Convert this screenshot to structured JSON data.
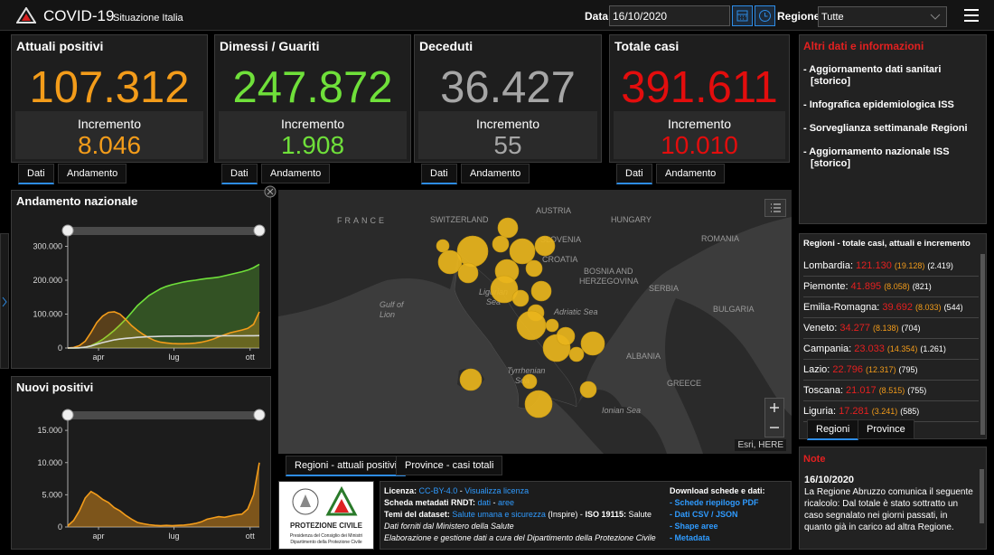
{
  "header": {
    "title": "COVID-19",
    "subtitle": "Situazione Italia",
    "date_label": "Data",
    "date": "16/10/2020",
    "region_label": "Regione",
    "region": "Tutte"
  },
  "cards": [
    {
      "title": "Attuali positivi",
      "value": "107.312",
      "increment_label": "Incremento",
      "increment": "8.046",
      "color": "#f39c1a",
      "tabs": [
        "Dati",
        "Andamento"
      ]
    },
    {
      "title": "Dimessi / Guariti",
      "value": "247.872",
      "increment_label": "Incremento",
      "increment": "1.908",
      "color": "#6fe03a",
      "tabs": [
        "Dati",
        "Andamento"
      ]
    },
    {
      "title": "Deceduti",
      "value": "36.427",
      "increment_label": "Incremento",
      "increment": "55",
      "color": "#a6a6a6",
      "tabs": [
        "Dati",
        "Andamento"
      ]
    },
    {
      "title": "Totale casi",
      "value": "391.611",
      "increment_label": "Incremento",
      "increment": "10.010",
      "color": "#e30d0d",
      "tabs": [
        "Dati",
        "Andamento"
      ]
    }
  ],
  "links": {
    "title": "Altri dati e informazioni",
    "items": [
      [
        "- Aggiornamento dati sanitari",
        "[storico]"
      ],
      [
        "- Infografica epidemiologica ISS"
      ],
      [
        "- Sorveglianza settimanale Regioni"
      ],
      [
        "- Aggiornamento nazionale ISS",
        "[storico]"
      ]
    ]
  },
  "andamento": {
    "type": "line",
    "title": "Andamento nazionale",
    "ylim": [
      0,
      320000
    ],
    "yticks": [
      0,
      {
        "value": 100000,
        "label": "100.000"
      },
      {
        "value": 200000,
        "label": "200.000"
      },
      {
        "value": 300000,
        "label": "300.000"
      }
    ],
    "xticks": [
      {
        "value": 5.3,
        "label": "apr"
      },
      {
        "value": 18.3,
        "label": "lug"
      },
      {
        "value": 31.4,
        "label": "ott"
      }
    ],
    "series": [
      {
        "color": "#6fe03a",
        "values": [
          0,
          100,
          600,
          2500,
          7000,
          15000,
          25000,
          38000,
          52000,
          68000,
          85000,
          105000,
          125000,
          140000,
          155000,
          165000,
          175000,
          182000,
          187000,
          191000,
          195000,
          198000,
          200000,
          203000,
          205000,
          207000,
          209000,
          213000,
          217000,
          221000,
          225000,
          230000,
          237000,
          247000
        ]
      },
      {
        "color": "#f39c1a",
        "values": [
          200,
          1500,
          7000,
          20000,
          46000,
          75000,
          94000,
          105000,
          107000,
          100000,
          84000,
          66000,
          52000,
          40000,
          30000,
          22000,
          17000,
          15000,
          13000,
          12500,
          12500,
          13000,
          14500,
          17000,
          21000,
          26000,
          33000,
          39000,
          45000,
          49000,
          53000,
          58000,
          70000,
          107000
        ]
      },
      {
        "color": "#d9d9d9",
        "values": [
          0,
          100,
          500,
          2500,
          6000,
          11000,
          16000,
          20000,
          24000,
          26500,
          28500,
          30000,
          31500,
          32500,
          33500,
          34000,
          34500,
          34800,
          35000,
          35100,
          35200,
          35300,
          35400,
          35500,
          35600,
          35700,
          35800,
          35900,
          36000,
          36000,
          36100,
          36200,
          36300,
          36400
        ]
      }
    ]
  },
  "nuovi": {
    "type": "area",
    "title": "Nuovi positivi",
    "ylim": [
      0,
      16000
    ],
    "yticks": [
      0,
      {
        "value": 5000,
        "label": "5.000"
      },
      {
        "value": 10000,
        "label": "10.000"
      },
      {
        "value": 15000,
        "label": "15.000"
      }
    ],
    "xticks": [
      {
        "value": 5.3,
        "label": "apr"
      },
      {
        "value": 18.3,
        "label": "lug"
      },
      {
        "value": 31.4,
        "label": "ott"
      }
    ],
    "series": [
      {
        "color": "#f39c1a",
        "values": [
          200,
          1000,
          2500,
          4500,
          5500,
          5000,
          4300,
          3800,
          3000,
          2500,
          1800,
          1200,
          700,
          500,
          350,
          250,
          200,
          250,
          200,
          250,
          300,
          400,
          550,
          800,
          1200,
          1400,
          1600,
          1500,
          1700,
          1900,
          2000,
          2800,
          5000,
          10000
        ]
      }
    ]
  },
  "map": {
    "labels": [
      "FRANCE",
      "SWITZERLAND",
      "AUSTRIA",
      "SLOVENIA",
      "HUNGARY",
      "ROMANIA",
      "CROATIA",
      "BOSNIA AND",
      "HERZEGOVINA",
      "SERBIA",
      "BULGARIA",
      "Gulf of",
      "Lion",
      "Ligurian",
      "Sea",
      "Adriatic Sea",
      "Tyrrhenian",
      "Sea",
      "Ionian Sea",
      "ALBANIA",
      "GREECE"
    ],
    "attribution": "Esri, HERE",
    "tabs": [
      "Regioni - attuali positivi",
      "Province - casi totali"
    ]
  },
  "regions": {
    "title": "Regioni - totale casi, attuali e incremento",
    "rows": [
      [
        "Lombardia:",
        "121.130",
        "(19.128)",
        "(2.419)"
      ],
      [
        "Piemonte:",
        "41.895",
        "(8.058)",
        "(821)"
      ],
      [
        "Emilia-Romagna:",
        "39.692",
        "(8.033)",
        "(544)"
      ],
      [
        "Veneto:",
        "34.277",
        "(8.138)",
        "(704)"
      ],
      [
        "Campania:",
        "23.033",
        "(14.354)",
        "(1.261)"
      ],
      [
        "Lazio:",
        "22.796",
        "(12.317)",
        "(795)"
      ],
      [
        "Toscana:",
        "21.017",
        "(8.515)",
        "(755)"
      ],
      [
        "Liguria:",
        "17.281",
        "(3.241)",
        "(585)"
      ]
    ],
    "tabs": [
      "Regioni",
      "Province"
    ]
  },
  "note": {
    "title": "Note",
    "date": "16/10/2020",
    "text": "La Regione Abruzzo comunica il seguente ricalcolo: Dal totale è stato sottratto un caso segnalato nei giorni passati, in quanto già in carico ad altra Regione."
  },
  "footer": {
    "logo": [
      "PROTEZIONE CIVILE",
      "Presidenza del Consiglio dei Ministri",
      "Dipartimento della Protezione Civile"
    ],
    "info": [
      [
        {
          "text": "Licenza: ",
          "style": "bold"
        },
        {
          "text": "CC-BY-4.0",
          "style": "link"
        },
        {
          "text": " - ",
          "style": "plain"
        },
        {
          "text": "Visualizza licenza",
          "style": "link"
        }
      ],
      [
        {
          "text": "Scheda metadati RNDT: ",
          "style": "bold"
        },
        {
          "text": "dati",
          "style": "link"
        },
        {
          "text": " - ",
          "style": "plain"
        },
        {
          "text": "aree",
          "style": "link"
        }
      ],
      [
        {
          "text": "Temi del dataset: ",
          "style": "bold"
        },
        {
          "text": "Salute umana e sicurezza",
          "style": "link"
        },
        {
          "text": " (Inspire) - ",
          "style": "plain"
        },
        {
          "text": "ISO 19115: ",
          "style": "bold"
        },
        {
          "text": "Salute",
          "style": "plain"
        }
      ],
      [
        {
          "text": "Dati forniti dal Ministero della Salute",
          "style": "italic"
        }
      ],
      [
        {
          "text": "Elaborazione e gestione dati a cura del Dipartimento della Protezione Civile",
          "style": "italic"
        }
      ]
    ],
    "download_title": "Download schede e dati:",
    "downloads": [
      "- Schede riepilogo PDF",
      "- Dati CSV / JSON",
      "- Shape aree",
      "- Metadata"
    ]
  }
}
